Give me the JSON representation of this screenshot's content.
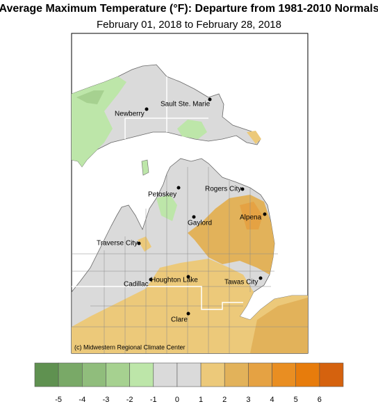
{
  "header": {
    "title": "Average Maximum Temperature (°F): Departure from 1981-2010 Normals",
    "subtitle": "February 01, 2018 to February 28, 2018"
  },
  "map": {
    "cities": [
      "Newberry",
      "Sault Ste. Marie",
      "Petoskey",
      "Rogers City",
      "Gaylord",
      "Alpena",
      "Traverse City",
      "Houghton Lake",
      "Cadillac",
      "Tawas City",
      "Clare"
    ],
    "credit": "(c) Midwestern Regional Climate Center"
  },
  "legend": {
    "colors": [
      "#5f9150",
      "#79a967",
      "#90bd7c",
      "#a6d190",
      "#bde6a9",
      "#dadada",
      "#dadada",
      "#ecc97a",
      "#e2b25a",
      "#e5a243",
      "#e98e22",
      "#e77c0c",
      "#d5620e"
    ],
    "ticks": [
      -5,
      -4,
      -3,
      -2,
      -1,
      0,
      1,
      2,
      3,
      4,
      5,
      6
    ]
  }
}
